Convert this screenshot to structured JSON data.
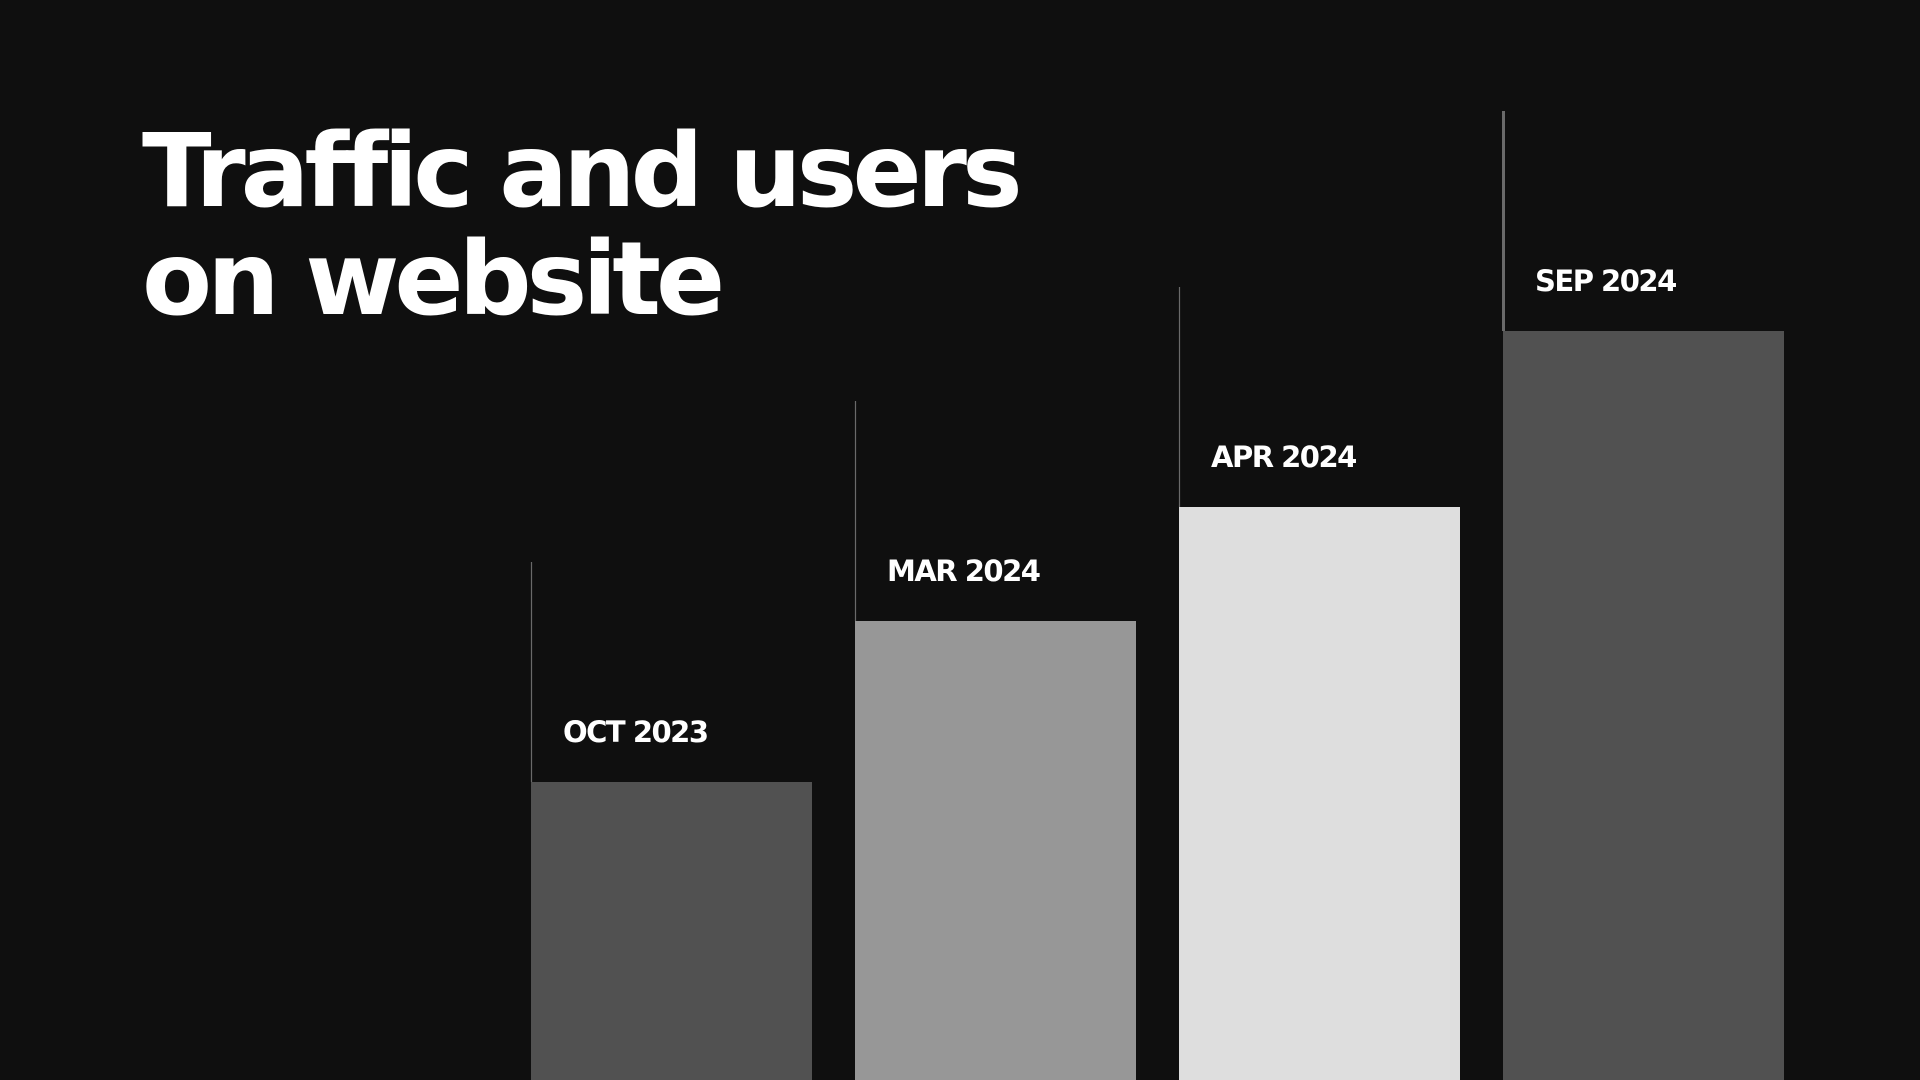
{
  "chart_data": {
    "type": "bar",
    "title": "Traffic and users on website",
    "categories": [
      "OCT 2023",
      "MAR 2024",
      "APR 2024",
      "SEP 2024"
    ],
    "values": [
      298,
      459,
      573,
      749
    ],
    "colors": [
      "#515151",
      "#979797",
      "#dedede",
      "#515151"
    ],
    "ylim": [
      0,
      1080
    ],
    "grid": false,
    "legend": "none"
  }
}
